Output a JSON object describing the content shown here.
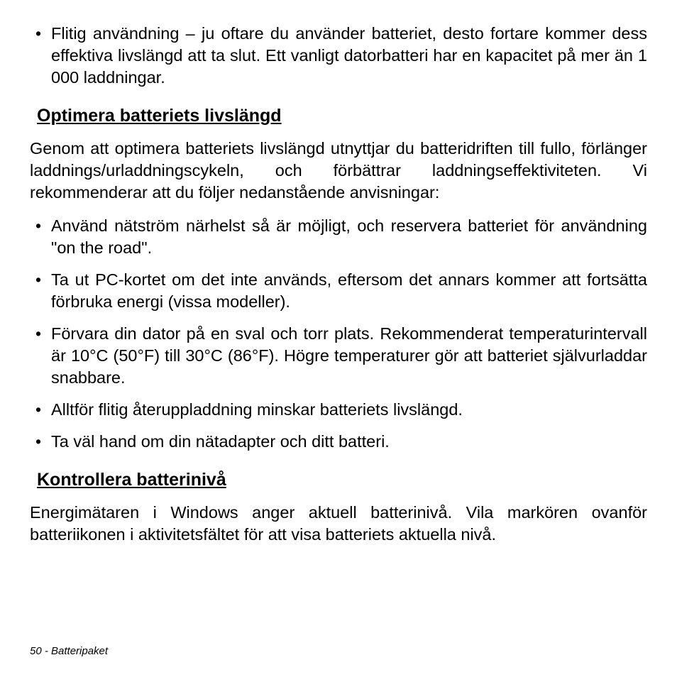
{
  "top_bullets": [
    "Flitig användning – ju oftare du använder batteriet, desto fortare kommer dess effektiva livslängd att ta slut. Ett vanligt datorbatteri har en kapacitet på mer än 1 000 laddningar."
  ],
  "section1": {
    "heading": "Optimera batteriets livslängd",
    "intro": "Genom att optimera batteriets livslängd utnyttjar du batteridriften till fullo, förlänger laddnings/urladdningscykeln, och förbättrar laddningseffektiviteten. Vi rekommenderar att du följer nedanstående anvisningar:",
    "bullets": [
      "Använd nätström närhelst så är möjligt, och reservera batteriet för användning \"on the road\".",
      "Ta ut PC-kortet om det inte används, eftersom det annars kommer att fortsätta förbruka energi (vissa modeller).",
      "Förvara din dator på en sval och torr plats. Rekommenderat temperaturintervall är 10°C (50°F) till 30°C (86°F). Högre temperaturer gör att batteriet självurladdar snabbare.",
      "Alltför flitig återuppladdning minskar batteriets livslängd.",
      "Ta väl hand om din nätadapter och ditt batteri."
    ]
  },
  "section2": {
    "heading": "Kontrollera batterinivå",
    "body": "Energimätaren i Windows anger aktuell batterinivå. Vila markören ovanför batteriikonen i aktivitetsfältet för att visa batteriets aktuella nivå."
  },
  "footer": "50 - Batteripaket"
}
